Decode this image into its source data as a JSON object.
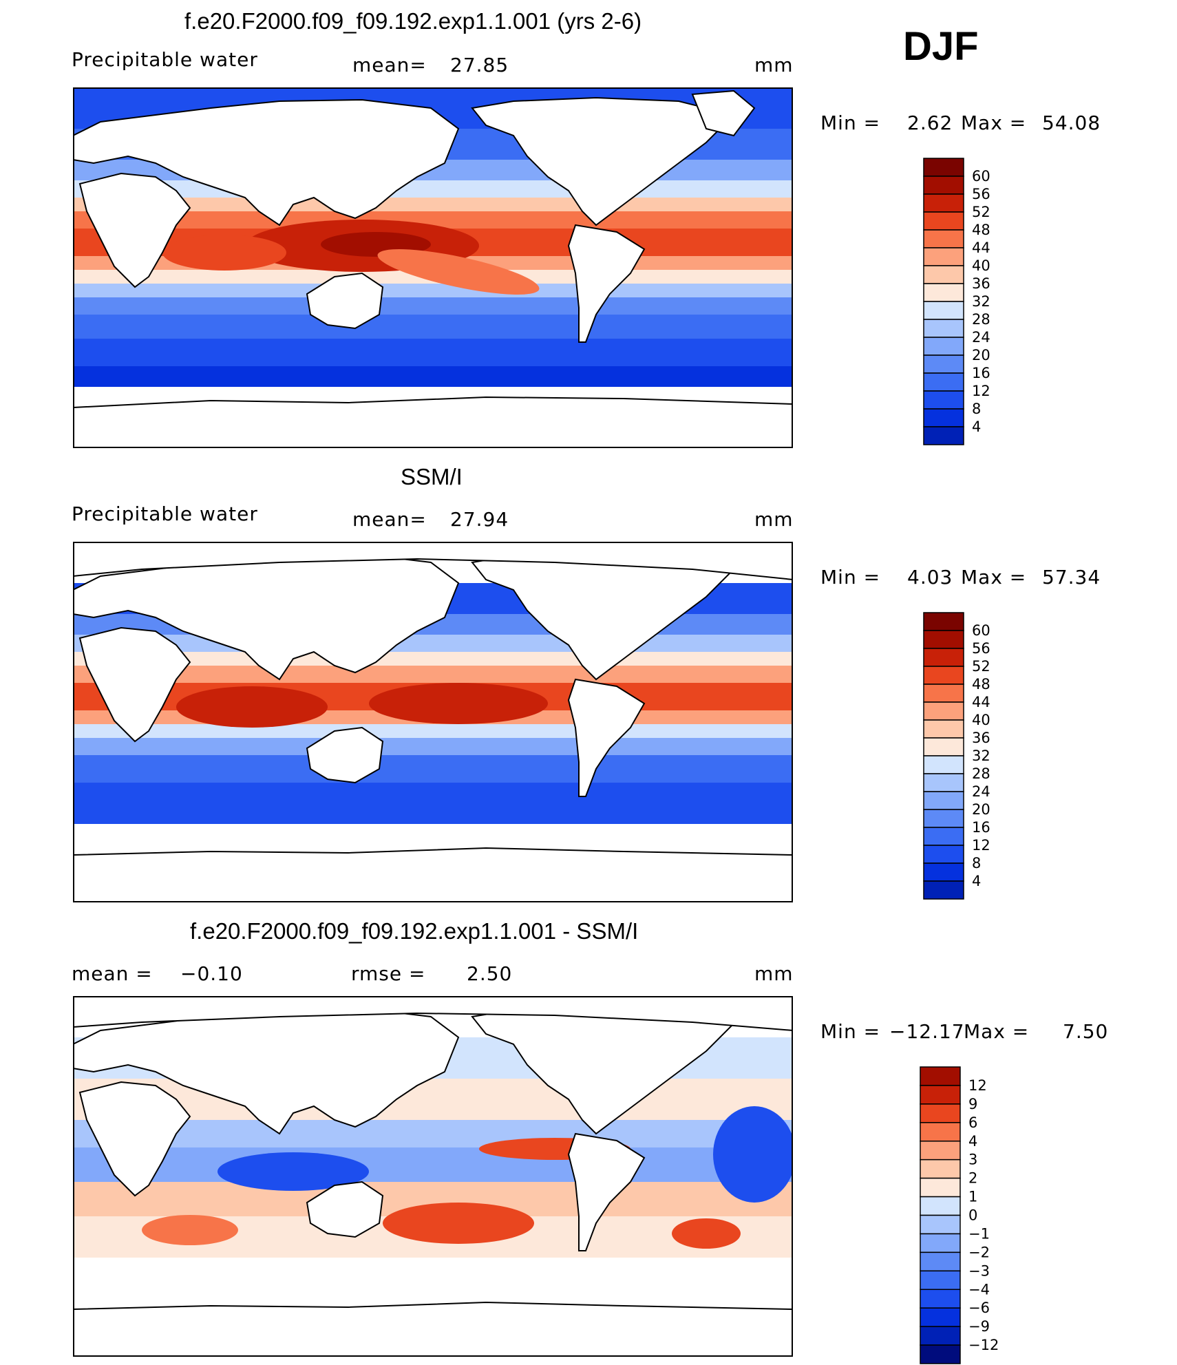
{
  "season": "DJF",
  "units": "mm",
  "panels": [
    {
      "title": "f.e20.F2000.f09_f09.192.exp1.1.001 (yrs 2-6)",
      "variable": "Precipitable water",
      "mean_label": "mean=",
      "mean_value": "27.85",
      "units": "mm",
      "min_label": "Min =",
      "min_value": "2.62",
      "max_label": "Max =",
      "max_value": "54.08",
      "levels": [
        "60",
        "56",
        "52",
        "48",
        "44",
        "40",
        "36",
        "32",
        "28",
        "24",
        "20",
        "16",
        "12",
        "8",
        "4"
      ]
    },
    {
      "title": "SSM/I",
      "variable": "Precipitable water",
      "mean_label": "mean=",
      "mean_value": "27.94",
      "units": "mm",
      "min_label": "Min =",
      "min_value": "4.03",
      "max_label": "Max =",
      "max_value": "57.34",
      "levels": [
        "60",
        "56",
        "52",
        "48",
        "44",
        "40",
        "36",
        "32",
        "28",
        "24",
        "20",
        "16",
        "12",
        "8",
        "4"
      ]
    },
    {
      "title": "f.e20.F2000.f09_f09.192.exp1.1.001 - SSM/I",
      "mean_label": "mean =",
      "mean_value": "−0.10",
      "rmse_label": "rmse =",
      "rmse_value": "2.50",
      "units": "mm",
      "min_label": "Min =",
      "min_value": "−12.17",
      "max_label": "Max =",
      "max_value": "7.50",
      "levels": [
        "12",
        "9",
        "6",
        "4",
        "3",
        "2",
        "1",
        "0",
        "−1",
        "−2",
        "−3",
        "−4",
        "−6",
        "−9",
        "−12"
      ]
    }
  ],
  "colors": {
    "abs_scale": [
      "#000c7d",
      "#0021b6",
      "#0531de",
      "#1d4eee",
      "#3b6df3",
      "#5d8af6",
      "#82a8fa",
      "#a8c5fc",
      "#d2e4fd",
      "#fde8da",
      "#fdc8aa",
      "#fca17c",
      "#f77449",
      "#e9461f",
      "#c82108",
      "#a20e00",
      "#7a0400"
    ],
    "diff_scale": [
      "#000c7d",
      "#0021b6",
      "#0531de",
      "#1d4eee",
      "#3b6df3",
      "#5d8af6",
      "#82a8fa",
      "#a8c5fc",
      "#d2e4fd",
      "#fde8da",
      "#fdc8aa",
      "#fca17c",
      "#f77449",
      "#e9461f",
      "#c82108",
      "#a20e00"
    ]
  }
}
